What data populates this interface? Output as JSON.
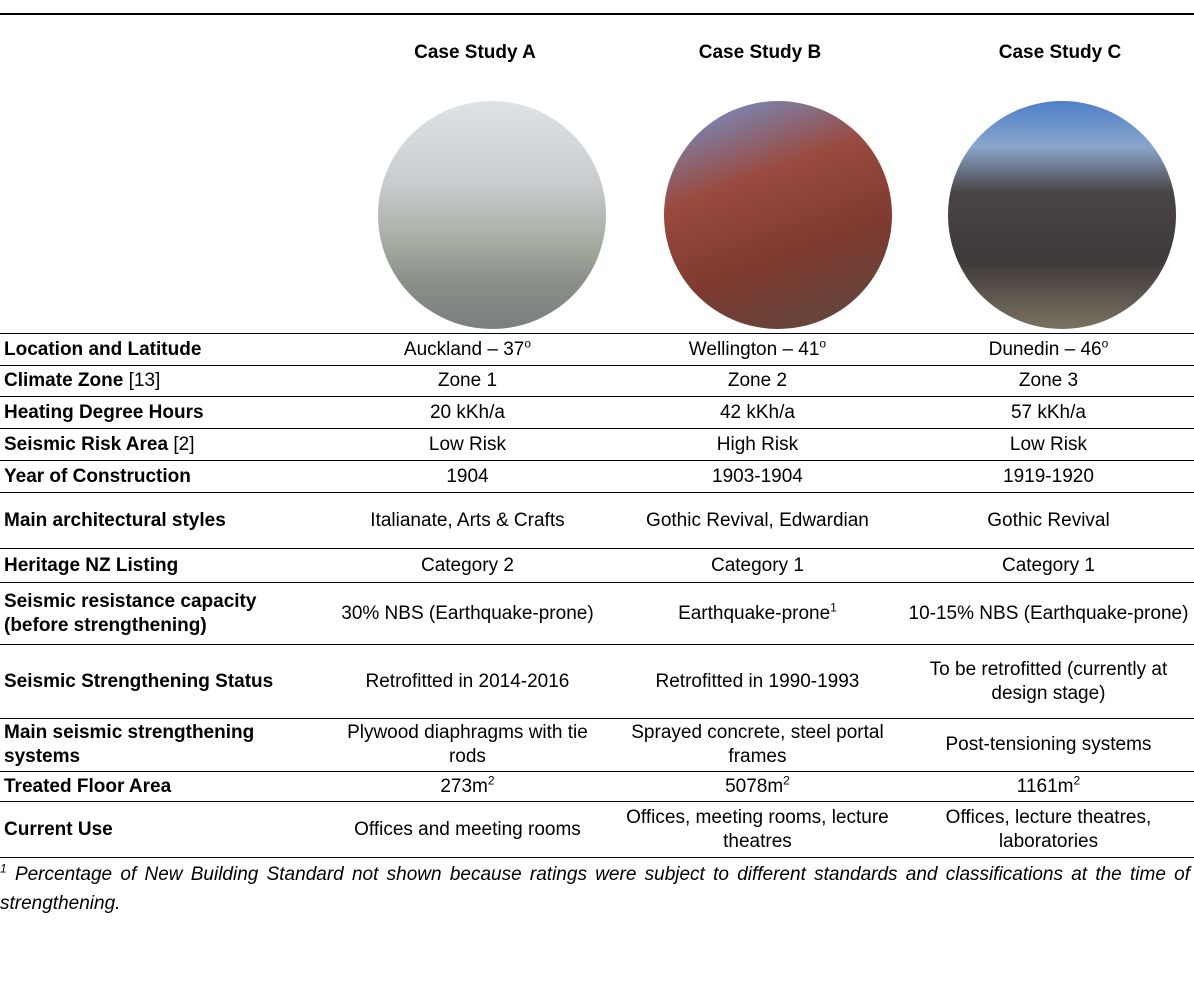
{
  "header": {
    "columns": [
      "Case Study A",
      "Case Study B",
      "Case Study C"
    ]
  },
  "table": {
    "rows": [
      {
        "label": "Location and Latitude",
        "cells": [
          {
            "text": "Auckland – 37",
            "sup": "o"
          },
          {
            "text": "Wellington – 41",
            "sup": "o"
          },
          {
            "text": "Dunedin – 46",
            "sup": "o"
          }
        ]
      },
      {
        "label": "Climate Zone",
        "note": "[13]",
        "cells": [
          {
            "text": "Zone 1"
          },
          {
            "text": "Zone 2"
          },
          {
            "text": "Zone 3"
          }
        ]
      },
      {
        "label": "Heating Degree Hours",
        "cells": [
          {
            "text": "20 kKh/a"
          },
          {
            "text": "42 kKh/a"
          },
          {
            "text": "57 kKh/a"
          }
        ]
      },
      {
        "label": "Seismic Risk Area",
        "note": "[2]",
        "cells": [
          {
            "text": "Low Risk"
          },
          {
            "text": "High Risk"
          },
          {
            "text": "Low Risk"
          }
        ]
      },
      {
        "label": "Year of Construction",
        "cells": [
          {
            "text": "1904"
          },
          {
            "text": "1903-1904"
          },
          {
            "text": "1919-1920"
          }
        ]
      },
      {
        "label": "Main architectural styles",
        "cells": [
          {
            "text": "Italianate, Arts & Crafts"
          },
          {
            "text": "Gothic Revival, Edwardian"
          },
          {
            "text": "Gothic Revival"
          }
        ]
      },
      {
        "label": "Heritage NZ Listing",
        "cells": [
          {
            "text": "Category 2"
          },
          {
            "text": "Category 1"
          },
          {
            "text": "Category 1"
          }
        ]
      },
      {
        "label": "Seismic resistance capacity (before strengthening)",
        "cells": [
          {
            "text": "30% NBS (Earthquake-prone)"
          },
          {
            "text": "Earthquake-prone",
            "sup": "1"
          },
          {
            "text": "10-15% NBS (Earthquake-prone)"
          }
        ]
      },
      {
        "label": "Seismic Strengthening Status",
        "cells": [
          {
            "text": "Retrofitted in 2014-2016"
          },
          {
            "text": "Retrofitted in 1990-1993"
          },
          {
            "text": "To be retrofitted (currently at design stage)"
          }
        ]
      },
      {
        "label": "Main seismic strengthening systems",
        "cells": [
          {
            "text": "Plywood diaphragms with tie rods"
          },
          {
            "text": "Sprayed concrete, steel portal frames"
          },
          {
            "text": "Post-tensioning systems"
          }
        ]
      },
      {
        "label": "Treated Floor Area",
        "cells": [
          {
            "text": "273m",
            "sup": "2"
          },
          {
            "text": "5078m",
            "sup": "2"
          },
          {
            "text": "1161m",
            "sup": "2"
          }
        ]
      },
      {
        "label": "Current Use",
        "cells": [
          {
            "text": "Offices and meeting rooms"
          },
          {
            "text": "Offices, meeting rooms, lecture theatres"
          },
          {
            "text": "Offices, lecture theatres, laboratories"
          }
        ]
      }
    ]
  },
  "footnote": {
    "sup": "1",
    "text": " Percentage of New Building Standard not shown because ratings were subject to different standards and classifications at the time of strengthening."
  }
}
